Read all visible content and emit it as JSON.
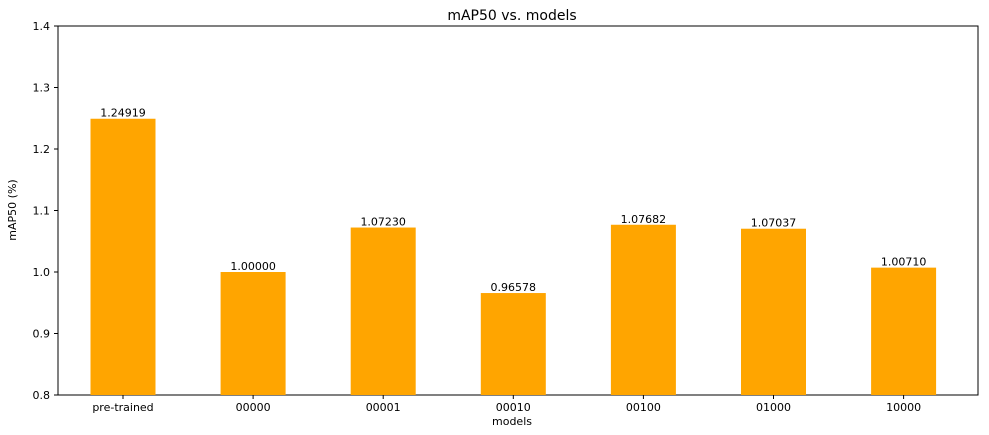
{
  "chart_data": {
    "type": "bar",
    "title": "mAP50 vs. models",
    "xlabel": "models",
    "ylabel": "mAP50 (%)",
    "categories": [
      "pre-trained",
      "00000",
      "00001",
      "00010",
      "00100",
      "01000",
      "10000"
    ],
    "values": [
      1.24919,
      1.0,
      1.0723,
      0.96578,
      1.07682,
      1.07037,
      1.0071
    ],
    "value_labels": [
      "1.24919",
      "1.00000",
      "1.07230",
      "0.96578",
      "1.07682",
      "1.07037",
      "1.00710"
    ],
    "ylim": [
      0.8,
      1.4
    ],
    "yticks": [
      0.8,
      0.9,
      1.0,
      1.1,
      1.2,
      1.3,
      1.4
    ],
    "ytick_labels": [
      "0.8",
      "0.9",
      "1.0",
      "1.1",
      "1.2",
      "1.3",
      "1.4"
    ],
    "bar_color": "#FFA500",
    "grid": false,
    "legend": "none"
  }
}
